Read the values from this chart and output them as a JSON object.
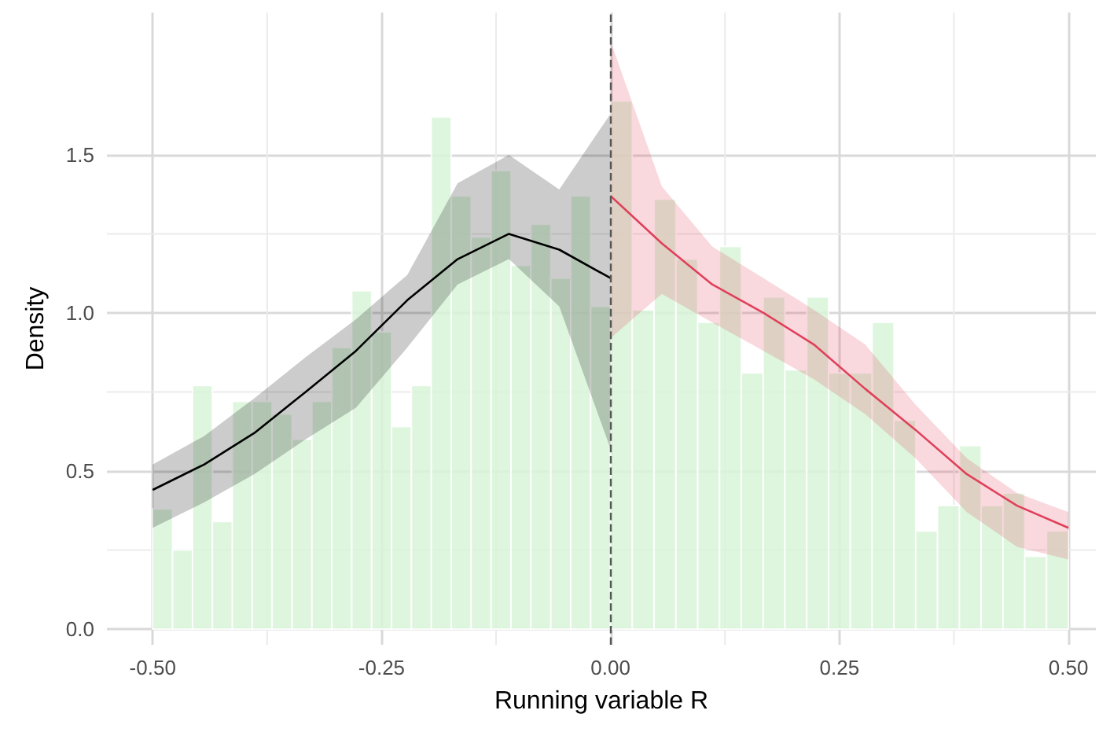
{
  "chart_data": {
    "type": "histogram",
    "xlabel": "Running variable R",
    "ylabel": "Density",
    "color": "#d8f3d8",
    "bins": [
      -0.5,
      -0.4783,
      -0.4565,
      -0.4348,
      -0.413,
      -0.3913,
      -0.3696,
      -0.3478,
      -0.3261,
      -0.3043,
      -0.2826,
      -0.2609,
      -0.2391,
      -0.2174,
      -0.1957,
      -0.1739,
      -0.1522,
      -0.1304,
      -0.1087,
      -0.087,
      -0.0652,
      -0.0435,
      -0.0217,
      0,
      0.0238,
      0.0476,
      0.0714,
      0.0952,
      0.119,
      0.1429,
      0.1667,
      0.1905,
      0.2143,
      0.2381,
      0.2619,
      0.2857,
      0.3095,
      0.3333,
      0.3571,
      0.381,
      0.4048,
      0.4286,
      0.4524,
      0.4762,
      0.5
    ],
    "values": [
      0.38,
      0.25,
      0.77,
      0.34,
      0.72,
      0.72,
      0.68,
      0.6,
      0.72,
      0.89,
      1.07,
      0.94,
      0.64,
      0.77,
      1.62,
      1.37,
      1.24,
      1.45,
      1.15,
      1.28,
      1.11,
      1.37,
      1.02,
      1.67,
      1.01,
      1.36,
      1.17,
      0.97,
      1.21,
      0.81,
      1.05,
      0.82,
      1.05,
      0.81,
      0.81,
      0.97,
      0.66,
      0.31,
      0.39,
      0.58,
      0.39,
      0.43,
      0.23,
      0.31
    ],
    "series": [
      {
        "type": "line",
        "color": "#000000",
        "x": [
          -0.5,
          -0.444,
          -0.389,
          -0.333,
          -0.278,
          -0.222,
          -0.167,
          -0.111,
          -0.056,
          0
        ],
        "values": [
          0.44,
          0.52,
          0.62,
          0.75,
          0.88,
          1.04,
          1.17,
          1.25,
          1.2,
          1.11
        ],
        "lower": [
          0.32,
          0.4,
          0.49,
          0.6,
          0.7,
          0.89,
          1.09,
          1.17,
          1.02,
          0.57
        ],
        "upper": [
          0.52,
          0.61,
          0.73,
          0.86,
          0.98,
          1.12,
          1.41,
          1.5,
          1.39,
          1.63
        ]
      },
      {
        "type": "line",
        "color": "#e0405a",
        "x": [
          0,
          0.056,
          0.111,
          0.167,
          0.222,
          0.278,
          0.333,
          0.389,
          0.444,
          0.5
        ],
        "values": [
          1.37,
          1.22,
          1.09,
          1.0,
          0.9,
          0.76,
          0.63,
          0.49,
          0.39,
          0.32
        ],
        "lower": [
          0.92,
          1.06,
          0.97,
          0.88,
          0.79,
          0.68,
          0.54,
          0.37,
          0.26,
          0.22
        ],
        "upper": [
          1.86,
          1.4,
          1.21,
          1.11,
          1.01,
          0.9,
          0.71,
          0.54,
          0.43,
          0.37
        ]
      }
    ],
    "ref_lines": [
      {
        "axis": "x",
        "value": 0,
        "color": "#555555",
        "line_style": "dashed"
      }
    ],
    "xlim": [
      -0.55,
      0.53
    ],
    "ylim": [
      -0.05,
      1.95
    ],
    "xticks": [
      {
        "value": -0.5,
        "label": "-0.50"
      },
      {
        "value": -0.25,
        "label": "-0.25"
      },
      {
        "value": 0,
        "label": "0.00"
      },
      {
        "value": 0.25,
        "label": "0.25"
      },
      {
        "value": 0.5,
        "label": "0.50"
      }
    ],
    "yticks": [
      {
        "value": 0,
        "label": "0.0"
      },
      {
        "value": 0.5,
        "label": "0.5"
      },
      {
        "value": 1,
        "label": "1.0"
      },
      {
        "value": 1.5,
        "label": "1.5"
      }
    ],
    "grid": true
  }
}
